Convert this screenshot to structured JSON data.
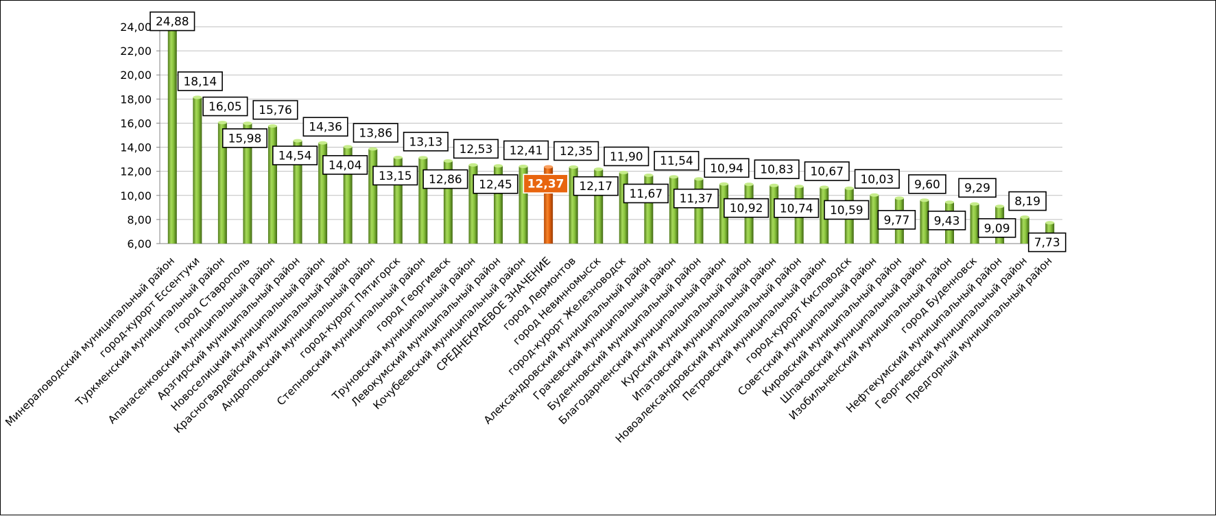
{
  "chart_data": {
    "type": "bar",
    "title": "",
    "xlabel": "",
    "ylabel": "",
    "ylim": [
      6,
      25
    ],
    "yticks": [
      "6,00",
      "8,00",
      "10,00",
      "12,00",
      "14,00",
      "16,00",
      "18,00",
      "20,00",
      "22,00",
      "24,00"
    ],
    "grid": "horizontal",
    "legend": "none",
    "colors": {
      "bar": "#8cc63f",
      "bar_dark": "#4f7a1a",
      "highlight": "#e8650f",
      "highlight_dark": "#b84a06",
      "grid": "#bfbfbf"
    },
    "highlight_category": "СРЕДНЕКРАЕВОЕ ЗНАЧЕНИЕ",
    "categories": [
      "Минераловодский муниципальный район",
      "город-курорт Ессентуки",
      "Туркменский муниципальный район",
      "город Ставрополь",
      "Апанасенковский муниципальный район",
      "Арзгирский муниципальный район",
      "Новоселицкий муниципальный район",
      "Красногвардейский муниципальный район",
      "Андроповский муниципальный район",
      "город-курорт Пятигорск",
      "Степновский муниципальный район",
      "город Георгиевск",
      "Труновский муниципальный район",
      "Левокумский муниципальный район",
      "Кочубеевский муниципальный район",
      "СРЕДНЕКРАЕВОЕ ЗНАЧЕНИЕ",
      "город Лермонтов",
      "город Невинномысск",
      "город-курорт Железноводск",
      "Александровский муниципальный район",
      "Грачевский муниципальный район",
      "Буденновский муниципальный район",
      "Благодарненский муниципальный район",
      "Курский муниципальный район",
      "Ипатовский муниципальный район",
      "Новоалександровский муниципальный район",
      "Петровский муниципальный район",
      "город-курорт Кисловодск",
      "Советский муниципальный район",
      "Кировский муниципальный район",
      "Шпаковский муниципальный район",
      "Изобильненский муниципальный район",
      "город Буденновск",
      "Нефтекумский муниципальный район",
      "Георгиевский муниципальный район",
      "Предгорный муниципальный район"
    ],
    "values": [
      24.88,
      18.14,
      16.05,
      15.98,
      15.76,
      14.54,
      14.36,
      14.04,
      13.86,
      13.15,
      13.13,
      12.86,
      12.53,
      12.45,
      12.41,
      12.37,
      12.35,
      12.17,
      11.9,
      11.67,
      11.54,
      11.37,
      10.94,
      10.92,
      10.83,
      10.74,
      10.67,
      10.59,
      10.03,
      9.77,
      9.6,
      9.43,
      9.29,
      9.09,
      8.19,
      7.73
    ],
    "value_labels": [
      "24,88",
      "18,14",
      "16,05",
      "15,98",
      "15,76",
      "14,54",
      "14,36",
      "14,04",
      "13,86",
      "13,15",
      "13,13",
      "12,86",
      "12,53",
      "12,45",
      "12,41",
      "12,37",
      "12,35",
      "12,17",
      "11,90",
      "11,67",
      "11,54",
      "11,37",
      "10,94",
      "10,92",
      "10,83",
      "10,74",
      "10,67",
      "10,59",
      "10,03",
      "9,77",
      "9,60",
      "9,43",
      "9,29",
      "9,09",
      "8,19",
      "7,73"
    ]
  }
}
